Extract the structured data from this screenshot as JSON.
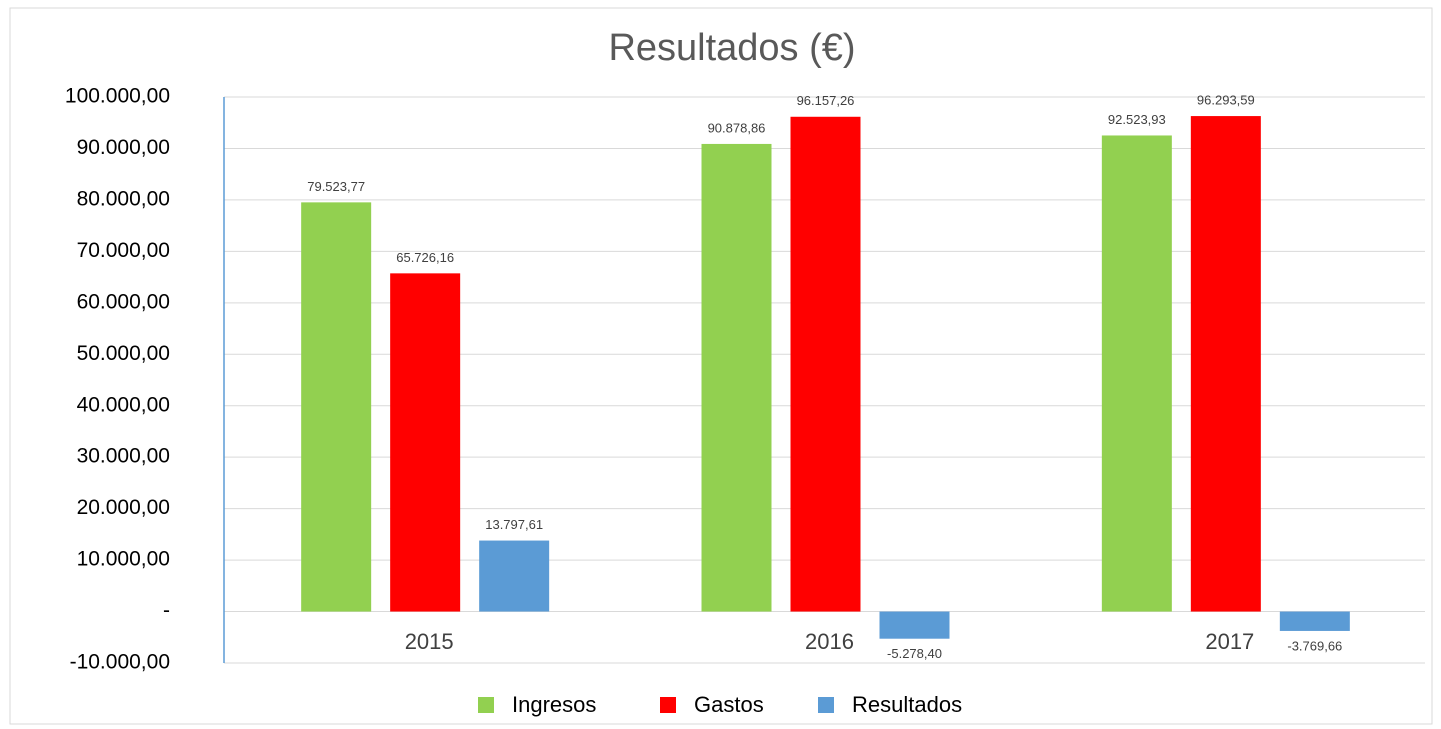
{
  "chart_data": {
    "type": "bar",
    "title": "Resultados (€)",
    "categories": [
      "2015",
      "2016",
      "2017"
    ],
    "series": [
      {
        "name": "Ingresos",
        "color": "#92d050",
        "values": [
          79523.77,
          90878.86,
          92523.93
        ],
        "value_labels": [
          "79.523,77",
          "90.878,86",
          "92.523,93"
        ]
      },
      {
        "name": "Gastos",
        "color": "#ff0000",
        "values": [
          65726.16,
          96157.26,
          96293.59
        ],
        "value_labels": [
          "65.726,16",
          "96.157,26",
          "96.293,59"
        ]
      },
      {
        "name": "Resultados",
        "color": "#5b9bd5",
        "values": [
          13797.61,
          -5278.4,
          -3769.66
        ],
        "value_labels": [
          "13.797,61",
          "-5.278,40",
          "-3.769,66"
        ]
      }
    ],
    "ylim": [
      -10000,
      100000
    ],
    "yticks": [
      {
        "value": -10000,
        "label": "-10.000,00"
      },
      {
        "value": 0,
        "label": "-"
      },
      {
        "value": 10000,
        "label": "10.000,00"
      },
      {
        "value": 20000,
        "label": "20.000,00"
      },
      {
        "value": 30000,
        "label": "30.000,00"
      },
      {
        "value": 40000,
        "label": "40.000,00"
      },
      {
        "value": 50000,
        "label": "50.000,00"
      },
      {
        "value": 60000,
        "label": "60.000,00"
      },
      {
        "value": 70000,
        "label": "70.000,00"
      },
      {
        "value": 80000,
        "label": "80.000,00"
      },
      {
        "value": 90000,
        "label": "90.000,00"
      },
      {
        "value": 100000,
        "label": "100.000,00"
      }
    ],
    "grid": true,
    "legend": "bottom"
  }
}
